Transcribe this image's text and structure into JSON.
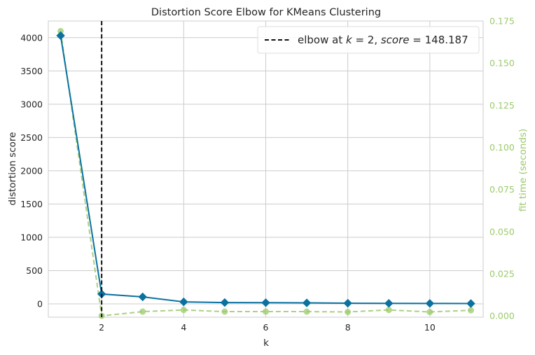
{
  "chart_data": {
    "type": "line",
    "title": "Distortion Score Elbow for KMeans Clustering",
    "xlabel": "k",
    "ylabel": "distortion score",
    "y2label": "fit time (seconds)",
    "x": [
      1,
      2,
      3,
      4,
      5,
      6,
      7,
      8,
      9,
      10,
      11
    ],
    "xlim": [
      0.7,
      11.3
    ],
    "ylim": [
      -200,
      4250
    ],
    "y2lim": [
      -0.0008,
      0.175
    ],
    "xticks": [
      "2",
      "4",
      "6",
      "8",
      "10"
    ],
    "xtick_values": [
      2,
      4,
      6,
      8,
      10
    ],
    "yticks": [
      "0",
      "500",
      "1000",
      "1500",
      "2000",
      "2500",
      "3000",
      "3500",
      "4000"
    ],
    "ytick_values": [
      0,
      500,
      1000,
      1500,
      2000,
      2500,
      3000,
      3500,
      4000
    ],
    "y2ticks": [
      "0.000",
      "0.025",
      "0.050",
      "0.075",
      "0.100",
      "0.125",
      "0.150",
      "0.175"
    ],
    "y2tick_values": [
      0,
      0.025,
      0.05,
      0.075,
      0.1,
      0.125,
      0.15,
      0.175
    ],
    "grid": true,
    "series": [
      {
        "role": "distortion score",
        "axis": "left",
        "color": "#0b72a0",
        "marker": "diamond",
        "values": [
          4030,
          148.187,
          105,
          30,
          20,
          18,
          15,
          10,
          8,
          7,
          5
        ]
      },
      {
        "role": "fit time",
        "axis": "right",
        "color": "#9bca6b",
        "marker": "circle",
        "dashed": true,
        "values": [
          0.169,
          0.0,
          0.0025,
          0.0035,
          0.0025,
          0.0025,
          0.0025,
          0.0023,
          0.0035,
          0.0023,
          0.0033
        ]
      }
    ],
    "elbow": {
      "k": 2,
      "score": "148.187",
      "legend_prefix": "elbow at ",
      "legend_k": "k",
      "legend_eq1": " = 2, ",
      "legend_score": "score",
      "legend_eq2": " = 148.187",
      "line_color": "#111111"
    },
    "legend_position": "top-right"
  }
}
